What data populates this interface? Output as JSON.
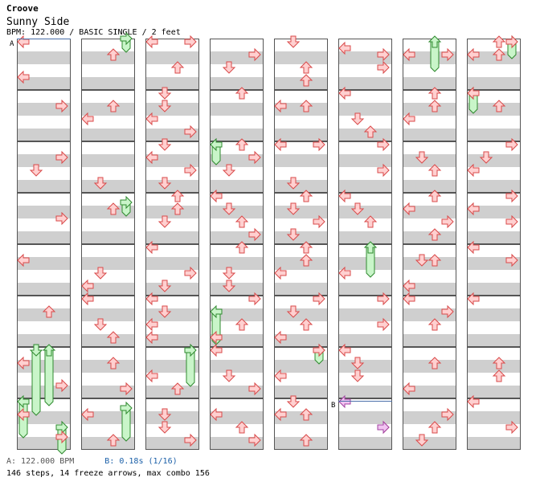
{
  "header": {
    "title": "Croove",
    "song": "Sunny Side",
    "info": "BPM: 122.000 / BASIC SINGLE / 2 feet"
  },
  "markers": {
    "a": "A",
    "b": "B"
  },
  "footer": {
    "bpm_a": "A: 122.000 BPM",
    "stop_b": "B: 0.18s (1/16)",
    "stats": "146 steps, 14 freeze arrows, max combo 156"
  },
  "colors": {
    "tap_fill": "#ffd0d0",
    "tap_stroke": "#d94a4a",
    "freeze_fill": "#c9f5c9",
    "freeze_stroke": "#2f8a2f",
    "shock_fill": "#f2c4f2",
    "shock_stroke": "#a040a0",
    "band": "#cfcfcf",
    "marker_a": "#4a6ea8",
    "marker_b": "#4a6ea8"
  },
  "chart_data": {
    "type": "step-chart",
    "columns": 8,
    "measures_per_column": 8,
    "rows_per_measure": 16,
    "lanes": [
      "left",
      "down",
      "up",
      "right"
    ],
    "notes": [
      [
        0,
        0,
        1,
        "left"
      ],
      [
        0,
        0,
        12,
        "left"
      ],
      [
        0,
        1,
        5,
        "right"
      ],
      [
        0,
        2,
        5,
        "right"
      ],
      [
        0,
        2,
        9,
        "down"
      ],
      [
        0,
        3,
        8,
        "right"
      ],
      [
        0,
        4,
        5,
        "left"
      ],
      [
        0,
        5,
        5,
        "up"
      ],
      [
        0,
        6,
        5,
        "left"
      ],
      [
        0,
        6,
        12,
        "right"
      ],
      [
        0,
        7,
        5,
        "left"
      ],
      [
        0,
        7,
        12,
        "right"
      ],
      [
        1,
        0,
        5,
        "up"
      ],
      [
        1,
        1,
        5,
        "up"
      ],
      [
        1,
        1,
        9,
        "left"
      ],
      [
        1,
        2,
        13,
        "down"
      ],
      [
        1,
        3,
        5,
        "up"
      ],
      [
        1,
        4,
        9,
        "down"
      ],
      [
        1,
        4,
        13,
        "left"
      ],
      [
        1,
        5,
        1,
        "left"
      ],
      [
        1,
        5,
        9,
        "down"
      ],
      [
        1,
        5,
        13,
        "up"
      ],
      [
        1,
        6,
        5,
        "up"
      ],
      [
        1,
        6,
        13,
        "right"
      ],
      [
        1,
        7,
        5,
        "left"
      ],
      [
        1,
        7,
        13,
        "up"
      ],
      [
        2,
        0,
        1,
        "left"
      ],
      [
        2,
        0,
        1,
        "right"
      ],
      [
        2,
        0,
        9,
        "up"
      ],
      [
        2,
        1,
        1,
        "down"
      ],
      [
        2,
        1,
        5,
        "down"
      ],
      [
        2,
        1,
        9,
        "left"
      ],
      [
        2,
        1,
        13,
        "right"
      ],
      [
        2,
        2,
        1,
        "down"
      ],
      [
        2,
        2,
        5,
        "left"
      ],
      [
        2,
        2,
        9,
        "right"
      ],
      [
        2,
        2,
        13,
        "down"
      ],
      [
        2,
        3,
        1,
        "up"
      ],
      [
        2,
        3,
        5,
        "up"
      ],
      [
        2,
        3,
        9,
        "down"
      ],
      [
        2,
        4,
        1,
        "left"
      ],
      [
        2,
        4,
        9,
        "right"
      ],
      [
        2,
        4,
        13,
        "down"
      ],
      [
        2,
        5,
        1,
        "left"
      ],
      [
        2,
        5,
        5,
        "down"
      ],
      [
        2,
        5,
        9,
        "left"
      ],
      [
        2,
        5,
        13,
        "left"
      ],
      [
        2,
        6,
        9,
        "left"
      ],
      [
        2,
        6,
        13,
        "up"
      ],
      [
        2,
        7,
        5,
        "down"
      ],
      [
        2,
        7,
        9,
        "down"
      ],
      [
        2,
        7,
        13,
        "right"
      ],
      [
        3,
        0,
        5,
        "right"
      ],
      [
        3,
        0,
        9,
        "down"
      ],
      [
        3,
        1,
        1,
        "up"
      ],
      [
        3,
        2,
        1,
        "up"
      ],
      [
        3,
        2,
        5,
        "right"
      ],
      [
        3,
        2,
        9,
        "down"
      ],
      [
        3,
        3,
        1,
        "left"
      ],
      [
        3,
        3,
        5,
        "down"
      ],
      [
        3,
        3,
        9,
        "up"
      ],
      [
        3,
        3,
        13,
        "right"
      ],
      [
        3,
        4,
        1,
        "up"
      ],
      [
        3,
        4,
        9,
        "down"
      ],
      [
        3,
        4,
        13,
        "down"
      ],
      [
        3,
        5,
        1,
        "right"
      ],
      [
        3,
        5,
        9,
        "up"
      ],
      [
        3,
        5,
        13,
        "left"
      ],
      [
        3,
        6,
        1,
        "left"
      ],
      [
        3,
        6,
        9,
        "down"
      ],
      [
        3,
        6,
        13,
        "right"
      ],
      [
        3,
        7,
        5,
        "left"
      ],
      [
        3,
        7,
        9,
        "up"
      ],
      [
        3,
        7,
        13,
        "right"
      ],
      [
        4,
        0,
        1,
        "down"
      ],
      [
        4,
        0,
        9,
        "up"
      ],
      [
        4,
        0,
        13,
        "up"
      ],
      [
        4,
        1,
        5,
        "left"
      ],
      [
        4,
        1,
        5,
        "up"
      ],
      [
        4,
        2,
        1,
        "left"
      ],
      [
        4,
        2,
        1,
        "right"
      ],
      [
        4,
        2,
        13,
        "down"
      ],
      [
        4,
        3,
        1,
        "up"
      ],
      [
        4,
        3,
        5,
        "down"
      ],
      [
        4,
        3,
        9,
        "right"
      ],
      [
        4,
        3,
        13,
        "down"
      ],
      [
        4,
        4,
        1,
        "up"
      ],
      [
        4,
        4,
        5,
        "up"
      ],
      [
        4,
        4,
        9,
        "left"
      ],
      [
        4,
        5,
        1,
        "right"
      ],
      [
        4,
        5,
        5,
        "down"
      ],
      [
        4,
        5,
        9,
        "up"
      ],
      [
        4,
        5,
        13,
        "left"
      ],
      [
        4,
        6,
        1,
        "right"
      ],
      [
        4,
        6,
        9,
        "left"
      ],
      [
        4,
        7,
        1,
        "down"
      ],
      [
        4,
        7,
        5,
        "left"
      ],
      [
        4,
        7,
        5,
        "up"
      ],
      [
        4,
        7,
        13,
        "up"
      ],
      [
        5,
        0,
        3,
        "left"
      ],
      [
        5,
        0,
        5,
        "right"
      ],
      [
        5,
        0,
        9,
        "right"
      ],
      [
        5,
        1,
        1,
        "left"
      ],
      [
        5,
        1,
        9,
        "down"
      ],
      [
        5,
        1,
        13,
        "up"
      ],
      [
        5,
        2,
        1,
        "right"
      ],
      [
        5,
        2,
        9,
        "right"
      ],
      [
        5,
        3,
        1,
        "left"
      ],
      [
        5,
        3,
        5,
        "down"
      ],
      [
        5,
        3,
        9,
        "up"
      ],
      [
        5,
        4,
        9,
        "left"
      ],
      [
        5,
        5,
        1,
        "right"
      ],
      [
        5,
        5,
        9,
        "right"
      ],
      [
        5,
        6,
        1,
        "left"
      ],
      [
        5,
        6,
        5,
        "down"
      ],
      [
        5,
        6,
        9,
        "down"
      ],
      [
        5,
        7,
        9,
        "right"
      ],
      [
        6,
        0,
        5,
        "left"
      ],
      [
        6,
        0,
        5,
        "right"
      ],
      [
        6,
        1,
        1,
        "up"
      ],
      [
        6,
        1,
        5,
        "up"
      ],
      [
        6,
        1,
        9,
        "left"
      ],
      [
        6,
        2,
        5,
        "down"
      ],
      [
        6,
        2,
        9,
        "up"
      ],
      [
        6,
        3,
        1,
        "up"
      ],
      [
        6,
        3,
        5,
        "left"
      ],
      [
        6,
        3,
        9,
        "right"
      ],
      [
        6,
        3,
        13,
        "up"
      ],
      [
        6,
        4,
        5,
        "down"
      ],
      [
        6,
        4,
        5,
        "up"
      ],
      [
        6,
        4,
        13,
        "left"
      ],
      [
        6,
        5,
        1,
        "left"
      ],
      [
        6,
        5,
        5,
        "right"
      ],
      [
        6,
        5,
        9,
        "up"
      ],
      [
        6,
        6,
        5,
        "up"
      ],
      [
        6,
        6,
        13,
        "left"
      ],
      [
        6,
        7,
        5,
        "right"
      ],
      [
        6,
        7,
        9,
        "up"
      ],
      [
        6,
        7,
        13,
        "down"
      ],
      [
        7,
        0,
        1,
        "up"
      ],
      [
        7,
        0,
        1,
        "right"
      ],
      [
        7,
        0,
        5,
        "left"
      ],
      [
        7,
        0,
        5,
        "up"
      ],
      [
        7,
        1,
        1,
        "left"
      ],
      [
        7,
        1,
        5,
        "up"
      ],
      [
        7,
        2,
        1,
        "right"
      ],
      [
        7,
        2,
        5,
        "down"
      ],
      [
        7,
        2,
        9,
        "left"
      ],
      [
        7,
        3,
        1,
        "right"
      ],
      [
        7,
        3,
        5,
        "left"
      ],
      [
        7,
        3,
        9,
        "right"
      ],
      [
        7,
        4,
        1,
        "left"
      ],
      [
        7,
        4,
        5,
        "right"
      ],
      [
        7,
        5,
        1,
        "left"
      ],
      [
        7,
        6,
        5,
        "up"
      ],
      [
        7,
        6,
        9,
        "up"
      ],
      [
        7,
        7,
        1,
        "left"
      ],
      [
        7,
        7,
        9,
        "right"
      ]
    ],
    "shocks": [
      [
        5,
        7,
        1,
        "left"
      ],
      [
        5,
        7,
        9,
        "right"
      ]
    ],
    "freezes": [
      [
        0,
        6,
        1,
        "down",
        0,
        7,
        4
      ],
      [
        0,
        6,
        1,
        "up",
        0,
        7,
        1
      ],
      [
        0,
        7,
        1,
        "left",
        0,
        7,
        11
      ],
      [
        0,
        7,
        9,
        "right",
        1,
        0,
        0
      ],
      [
        1,
        0,
        0,
        "right",
        1,
        0,
        3
      ],
      [
        1,
        3,
        3,
        "right",
        1,
        3,
        6
      ],
      [
        1,
        7,
        3,
        "right",
        1,
        7,
        12
      ],
      [
        2,
        6,
        1,
        "right",
        2,
        6,
        11
      ],
      [
        3,
        2,
        1,
        "left",
        3,
        2,
        6
      ],
      [
        3,
        5,
        5,
        "left",
        3,
        5,
        14
      ],
      [
        4,
        6,
        1,
        "right",
        4,
        6,
        4
      ],
      [
        5,
        4,
        1,
        "up",
        5,
        4,
        9
      ],
      [
        6,
        0,
        1,
        "up",
        6,
        0,
        9
      ],
      [
        7,
        0,
        1,
        "right",
        7,
        0,
        5
      ],
      [
        7,
        1,
        1,
        "left",
        7,
        1,
        6
      ]
    ],
    "bpm_marker_a": [
      0,
      0,
      0
    ],
    "stop_marker_b": [
      5,
      7,
      0
    ]
  }
}
